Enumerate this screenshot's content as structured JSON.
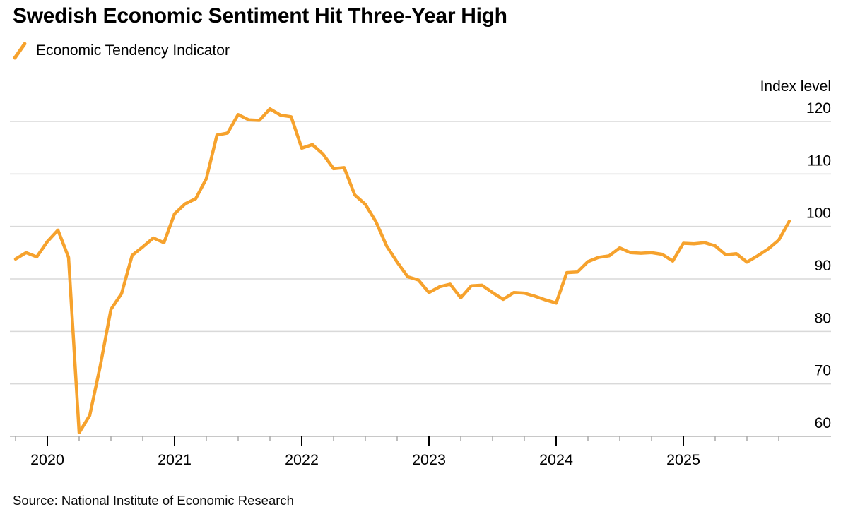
{
  "header": {
    "title": "Swedish Economic Sentiment Hit Three-Year High"
  },
  "legend": {
    "items": [
      {
        "label": "Economic Tendency Indicator",
        "color": "#F6A22D",
        "marker": "slash"
      }
    ]
  },
  "footer": {
    "source": "Source: National Institute of Economic Research"
  },
  "chart_data": {
    "type": "line",
    "title": "Swedish Economic Sentiment Hit Three-Year High",
    "ylabel": "Index level",
    "xlabel": "",
    "grid": "horizontal",
    "axis_label_position": "right",
    "ylim": [
      60,
      124
    ],
    "yticks": [
      60,
      70,
      80,
      90,
      100,
      110,
      120
    ],
    "xticks": [
      {
        "label": "2020",
        "month": "2020-01"
      },
      {
        "label": "2021",
        "month": "2021-01"
      },
      {
        "label": "2022",
        "month": "2022-01"
      },
      {
        "label": "2023",
        "month": "2023-01"
      },
      {
        "label": "2024",
        "month": "2024-01"
      },
      {
        "label": "2025",
        "month": "2025-01"
      }
    ],
    "minor_tick_months": [
      1,
      4,
      7,
      10
    ],
    "series": [
      {
        "name": "Economic Tendency Indicator",
        "color": "#F6A22D",
        "x": [
          "2019-10",
          "2019-11",
          "2019-12",
          "2020-01",
          "2020-02",
          "2020-03",
          "2020-04",
          "2020-05",
          "2020-06",
          "2020-07",
          "2020-08",
          "2020-09",
          "2020-10",
          "2020-11",
          "2020-12",
          "2021-01",
          "2021-02",
          "2021-03",
          "2021-04",
          "2021-05",
          "2021-06",
          "2021-07",
          "2021-08",
          "2021-09",
          "2021-10",
          "2021-11",
          "2021-12",
          "2022-01",
          "2022-02",
          "2022-03",
          "2022-04",
          "2022-05",
          "2022-06",
          "2022-07",
          "2022-08",
          "2022-09",
          "2022-10",
          "2022-11",
          "2022-12",
          "2023-01",
          "2023-02",
          "2023-03",
          "2023-04",
          "2023-05",
          "2023-06",
          "2023-07",
          "2023-08",
          "2023-09",
          "2023-10",
          "2023-11",
          "2023-12",
          "2024-01",
          "2024-02",
          "2024-03",
          "2024-04",
          "2024-05",
          "2024-06",
          "2024-07",
          "2024-08",
          "2024-09",
          "2024-10",
          "2024-11",
          "2024-12",
          "2025-01",
          "2025-02",
          "2025-03",
          "2025-04",
          "2025-05",
          "2025-06",
          "2025-07",
          "2025-08",
          "2025-09",
          "2025-10",
          "2025-11"
        ],
        "values": [
          93.8,
          95.0,
          94.2,
          97.1,
          99.3,
          94.1,
          60.7,
          64.0,
          73.5,
          84.2,
          87.2,
          94.5,
          96.1,
          97.8,
          96.9,
          102.4,
          104.3,
          105.3,
          109.1,
          117.4,
          117.8,
          121.3,
          120.3,
          120.2,
          122.4,
          121.2,
          120.9,
          114.9,
          115.6,
          113.8,
          111.0,
          111.2,
          106.0,
          104.2,
          100.9,
          96.3,
          93.2,
          90.4,
          89.8,
          87.4,
          88.5,
          89.0,
          86.4,
          88.7,
          88.8,
          87.4,
          86.1,
          87.4,
          87.3,
          86.7,
          86.0,
          85.4,
          91.2,
          91.3,
          93.3,
          94.1,
          94.4,
          95.9,
          95.0,
          94.9,
          95.0,
          94.7,
          93.4,
          96.8,
          96.7,
          96.9,
          96.3,
          94.6,
          94.8,
          93.2,
          94.4,
          95.7,
          97.4,
          101.0
        ]
      }
    ],
    "colors": {
      "line": "#F6A22D",
      "gridline": "#D9D9D9",
      "axis": "#C8C8C8",
      "year_tick": "#000000",
      "quarter_tick": "#A9A9A9",
      "text": "#000000"
    }
  }
}
